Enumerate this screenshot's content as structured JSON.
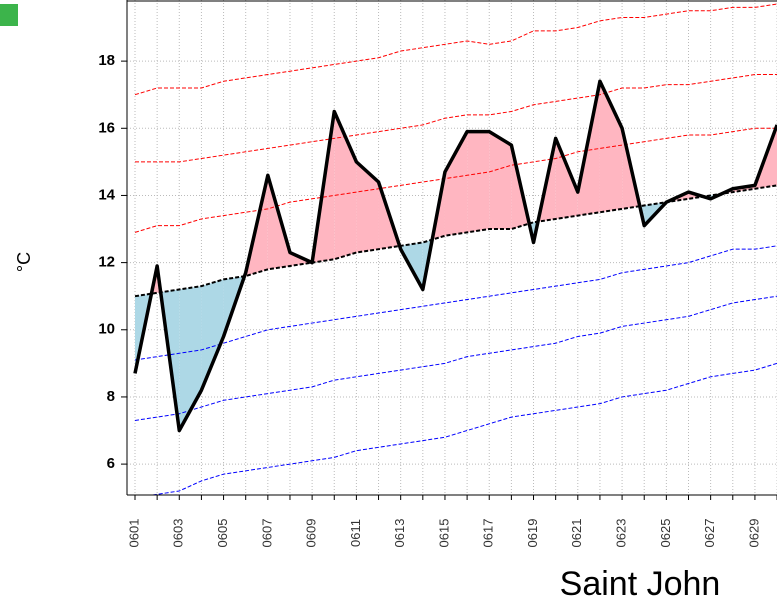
{
  "chart_data": {
    "type": "line",
    "title": "Saint John",
    "y_label": "°C",
    "categories": [
      "0601",
      null,
      "0603",
      null,
      "0605",
      null,
      "0607",
      null,
      "0609",
      null,
      "0611",
      null,
      "0613",
      null,
      "0615",
      null,
      "0617",
      null,
      "0619",
      null,
      "0621",
      null,
      "0623",
      null,
      "0625",
      null,
      "0627",
      null,
      "0629",
      null
    ],
    "ylim": [
      5.08,
      19.82
    ],
    "yticks": [
      6,
      8,
      10,
      12,
      14,
      16,
      18
    ],
    "grid": true,
    "fill_above_color": "#ffb6c1",
    "fill_below_color": "#add8e6",
    "fill_between": [
      0,
      1
    ],
    "series": [
      {
        "color": "#000000",
        "style": "solid",
        "values": [
          8.7,
          11.9,
          7.0,
          8.2,
          9.8,
          11.7,
          14.6,
          12.3,
          12.0,
          16.5,
          15.0,
          14.4,
          12.4,
          11.2,
          14.7,
          15.9,
          15.9,
          15.5,
          12.6,
          15.7,
          14.1,
          17.4,
          16.0,
          13.1,
          13.8,
          14.1,
          13.9,
          14.2,
          14.3,
          16.1
        ]
      },
      {
        "color": "#000000",
        "style": "dashed",
        "values": [
          11.0,
          11.1,
          11.2,
          11.3,
          11.5,
          11.6,
          11.8,
          11.9,
          12.0,
          12.1,
          12.3,
          12.4,
          12.5,
          12.6,
          12.8,
          12.9,
          13.0,
          13.0,
          13.2,
          13.3,
          13.4,
          13.5,
          13.6,
          13.7,
          13.8,
          13.9,
          14.0,
          14.1,
          14.2,
          14.3
        ]
      },
      {
        "color": "#ff0000",
        "style": "dashed",
        "values": [
          17.0,
          17.2,
          17.2,
          17.2,
          17.4,
          17.5,
          17.6,
          17.7,
          17.8,
          17.9,
          18.0,
          18.1,
          18.3,
          18.4,
          18.5,
          18.6,
          18.5,
          18.6,
          18.9,
          18.9,
          19.0,
          19.2,
          19.3,
          19.3,
          19.4,
          19.5,
          19.5,
          19.6,
          19.6,
          19.7
        ]
      },
      {
        "color": "#ff0000",
        "style": "dashed",
        "values": [
          15.0,
          15.0,
          15.0,
          15.1,
          15.2,
          15.3,
          15.4,
          15.5,
          15.6,
          15.7,
          15.8,
          15.9,
          16.0,
          16.1,
          16.3,
          16.4,
          16.4,
          16.5,
          16.7,
          16.8,
          16.9,
          17.0,
          17.2,
          17.2,
          17.3,
          17.3,
          17.4,
          17.5,
          17.6,
          17.6
        ]
      },
      {
        "color": "#ff0000",
        "style": "dashed",
        "values": [
          12.9,
          13.1,
          13.1,
          13.3,
          13.4,
          13.5,
          13.6,
          13.8,
          13.9,
          14.0,
          14.1,
          14.2,
          14.3,
          14.4,
          14.5,
          14.6,
          14.7,
          14.9,
          15.0,
          15.1,
          15.3,
          15.4,
          15.5,
          15.6,
          15.7,
          15.8,
          15.8,
          15.9,
          16.0,
          16.0
        ]
      },
      {
        "color": "#0000ff",
        "style": "dashed",
        "values": [
          9.1,
          9.2,
          9.3,
          9.4,
          9.6,
          9.8,
          10.0,
          10.1,
          10.2,
          10.3,
          10.4,
          10.5,
          10.6,
          10.7,
          10.8,
          10.9,
          11.0,
          11.1,
          11.2,
          11.3,
          11.4,
          11.5,
          11.7,
          11.8,
          11.9,
          12.0,
          12.2,
          12.4,
          12.4,
          12.5
        ]
      },
      {
        "color": "#0000ff",
        "style": "dashed",
        "values": [
          7.3,
          7.4,
          7.5,
          7.7,
          7.9,
          8.0,
          8.1,
          8.2,
          8.3,
          8.5,
          8.6,
          8.7,
          8.8,
          8.9,
          9.0,
          9.2,
          9.3,
          9.4,
          9.5,
          9.6,
          9.8,
          9.9,
          10.1,
          10.2,
          10.3,
          10.4,
          10.6,
          10.8,
          10.9,
          11.0
        ]
      },
      {
        "color": "#0000ff",
        "style": "dashed",
        "values": [
          5.0,
          5.1,
          5.2,
          5.5,
          5.7,
          5.8,
          5.9,
          6.0,
          6.1,
          6.2,
          6.4,
          6.5,
          6.6,
          6.7,
          6.8,
          7.0,
          7.2,
          7.4,
          7.5,
          7.6,
          7.7,
          7.8,
          8.0,
          8.1,
          8.2,
          8.4,
          8.6,
          8.7,
          8.8,
          9.0
        ]
      }
    ]
  }
}
